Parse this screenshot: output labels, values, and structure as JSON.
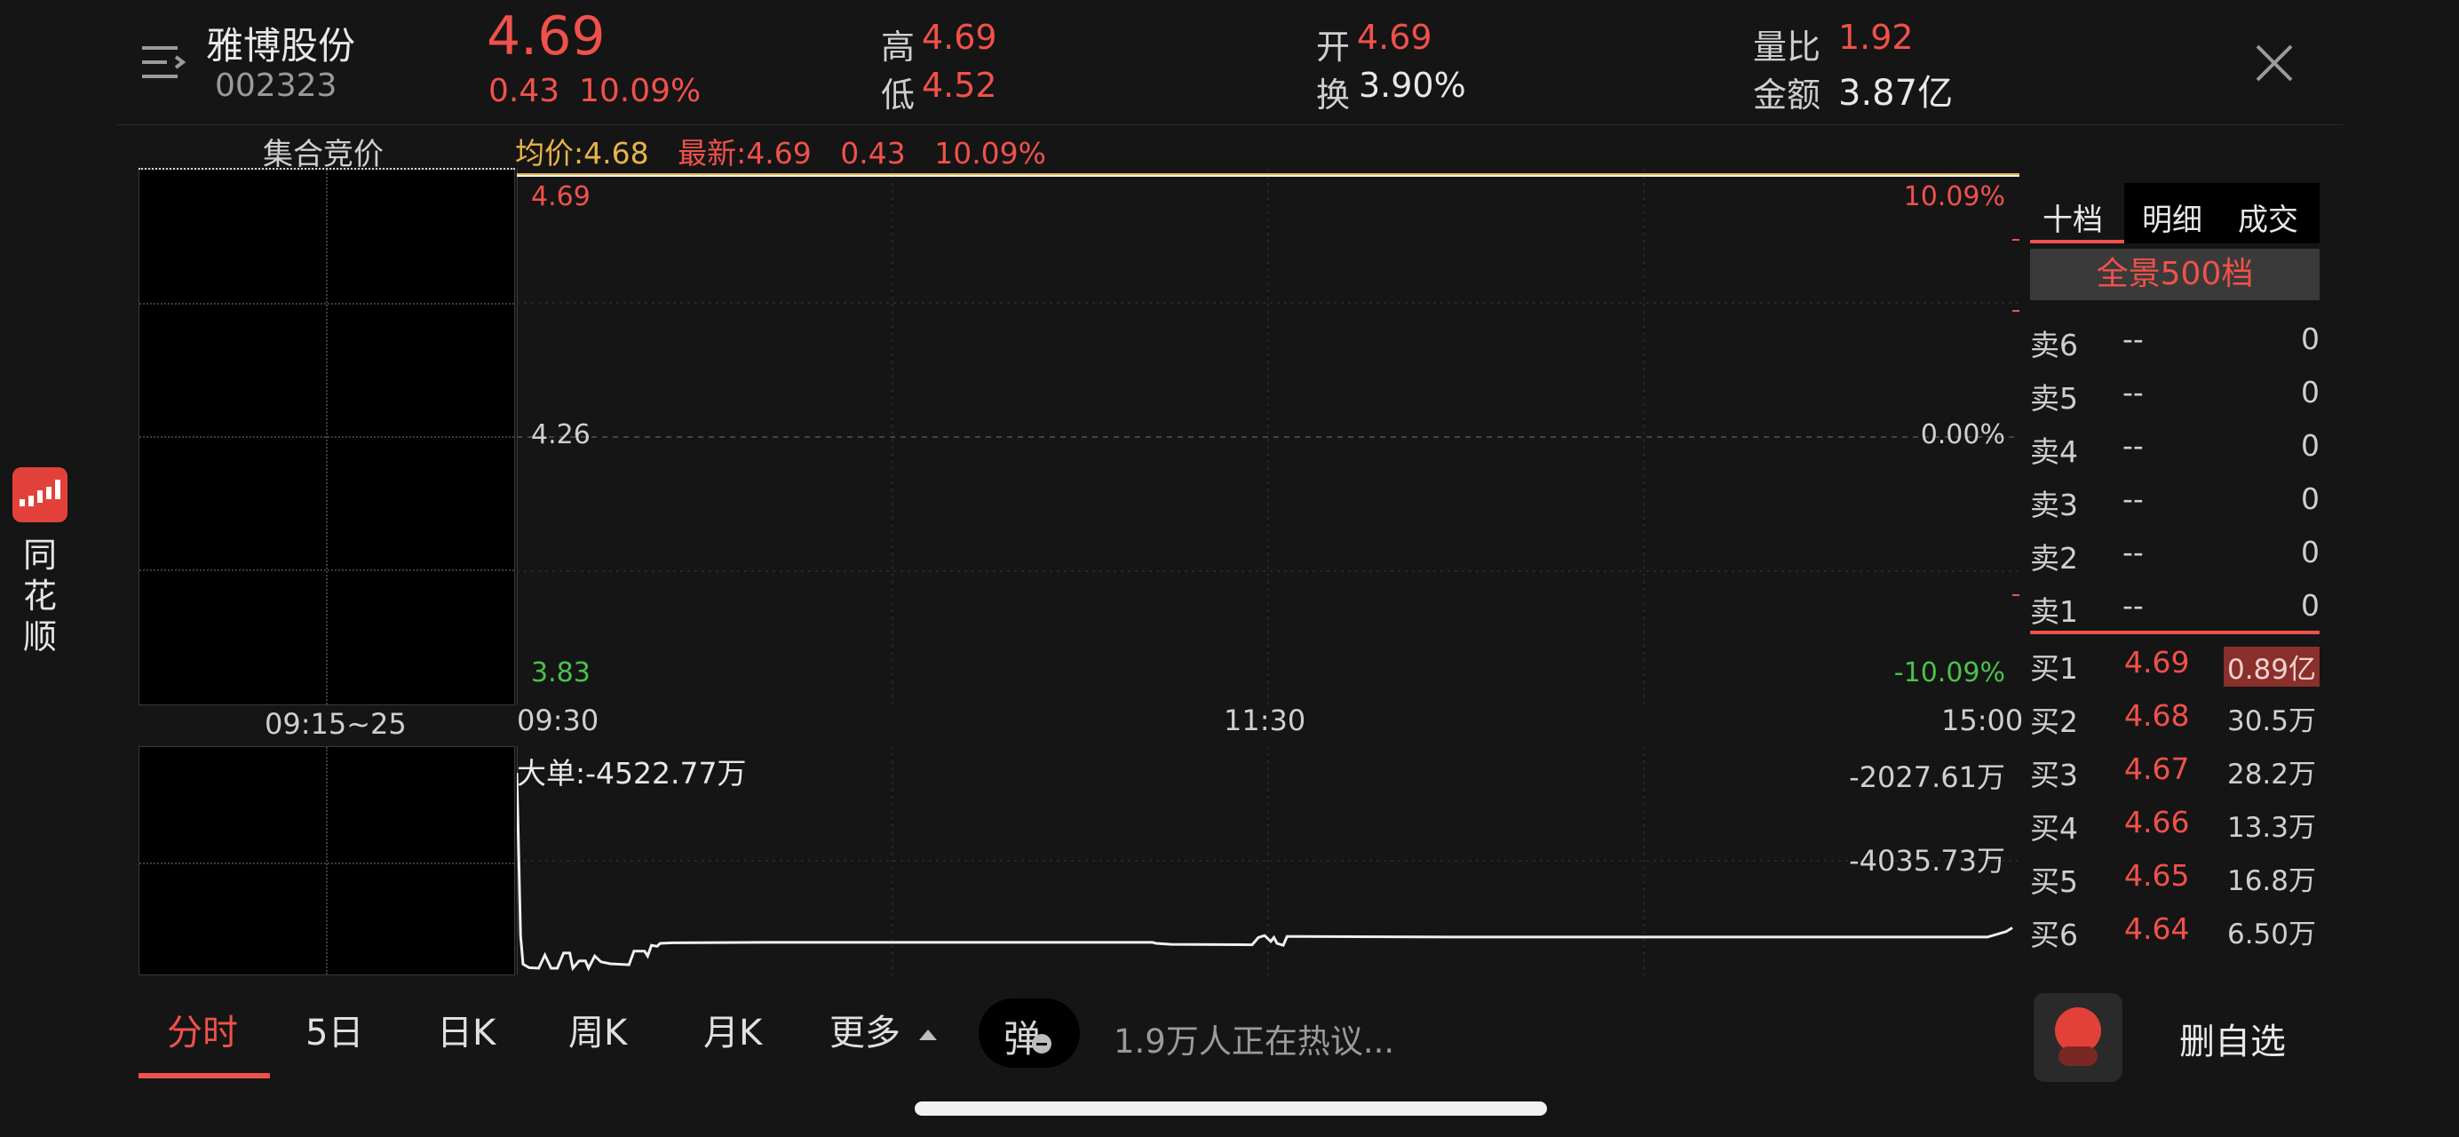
{
  "header": {
    "stock_name": "雅博股份",
    "stock_code": "002323",
    "price": "4.69",
    "change": "0.43",
    "change_pct": "10.09%",
    "stats": {
      "high_label": "高",
      "high": "4.69",
      "low_label": "低",
      "low": "4.52",
      "open_label": "开",
      "open": "4.69",
      "turnover_label": "换",
      "turnover": "3.90%",
      "vol_ratio_label": "量比",
      "vol_ratio": "1.92",
      "amount_label": "金额",
      "amount": "3.87亿"
    }
  },
  "sidebar": {
    "app_name_chars": [
      "同",
      "花",
      "顺"
    ]
  },
  "auction": {
    "title": "集合竞价",
    "time_label": "09:15~25"
  },
  "chart_info": {
    "avg_label": "均价:4.68",
    "latest_label": "最新:4.69",
    "change": "0.43",
    "change_pct": "10.09%"
  },
  "chart_data": {
    "type": "line",
    "price_axis": {
      "top": "4.69",
      "mid": "4.26",
      "bottom": "3.83"
    },
    "pct_axis": {
      "top": "10.09%",
      "mid": "0.00%",
      "bottom": "-10.09%"
    },
    "time_ticks": [
      "09:30",
      "11:30",
      "15:00"
    ],
    "price_series": {
      "start": 4.69,
      "end": 4.69,
      "ylim": [
        3.83,
        4.69
      ]
    },
    "flow": {
      "label": "大单:-4522.77万",
      "top_value": "-2027.61万",
      "bottom_value": "-4035.73万",
      "ylim": [
        -4035.73,
        -2027.61
      ],
      "points": [
        [
          0,
          -2027.61
        ],
        [
          0.6,
          -3700
        ],
        [
          1,
          -3995
        ],
        [
          2,
          -4030
        ],
        [
          3.5,
          -4035.73
        ],
        [
          4.5,
          -3900
        ],
        [
          5.5,
          -4035.73
        ],
        [
          6.5,
          -4035.73
        ],
        [
          7.5,
          -3880
        ],
        [
          8.5,
          -3880
        ],
        [
          9,
          -4035.73
        ],
        [
          10,
          -3960
        ],
        [
          11,
          -3960
        ],
        [
          11.5,
          -4035.73
        ],
        [
          12.5,
          -3910
        ],
        [
          13.5,
          -3970
        ],
        [
          15,
          -3990
        ],
        [
          18,
          -4000
        ],
        [
          18.8,
          -3860
        ],
        [
          20.5,
          -3860
        ],
        [
          21,
          -3910
        ],
        [
          21.6,
          -3800
        ],
        [
          22.5,
          -3810
        ],
        [
          23,
          -3780
        ],
        [
          25,
          -3775
        ],
        [
          40,
          -3770
        ],
        [
          50,
          -3770
        ],
        [
          75,
          -3770
        ],
        [
          90,
          -3770
        ],
        [
          102,
          -3770
        ],
        [
          102.6,
          -3780
        ],
        [
          105,
          -3790
        ],
        [
          118,
          -3795
        ],
        [
          119,
          -3720
        ],
        [
          120,
          -3700
        ],
        [
          121,
          -3760
        ],
        [
          121.5,
          -3720
        ],
        [
          122,
          -3780
        ],
        [
          123,
          -3800
        ],
        [
          123.6,
          -3710
        ],
        [
          126,
          -3710
        ],
        [
          150,
          -3715
        ],
        [
          180,
          -3715
        ],
        [
          210,
          -3715
        ],
        [
          236,
          -3715
        ],
        [
          239,
          -3660
        ],
        [
          240,
          -3620
        ]
      ]
    }
  },
  "orderbook": {
    "tabs": [
      "十档",
      "明细",
      "成交"
    ],
    "panorama_btn": "全景500档",
    "asks": [
      {
        "label": "卖6",
        "price": "--",
        "vol": "0"
      },
      {
        "label": "卖5",
        "price": "--",
        "vol": "0"
      },
      {
        "label": "卖4",
        "price": "--",
        "vol": "0"
      },
      {
        "label": "卖3",
        "price": "--",
        "vol": "0"
      },
      {
        "label": "卖2",
        "price": "--",
        "vol": "0"
      },
      {
        "label": "卖1",
        "price": "--",
        "vol": "0"
      }
    ],
    "bids": [
      {
        "label": "买1",
        "price": "4.69",
        "vol": "0.89亿"
      },
      {
        "label": "买2",
        "price": "4.68",
        "vol": "30.5万"
      },
      {
        "label": "买3",
        "price": "4.67",
        "vol": "28.2万"
      },
      {
        "label": "买4",
        "price": "4.66",
        "vol": "13.3万"
      },
      {
        "label": "买5",
        "price": "4.65",
        "vol": "16.8万"
      },
      {
        "label": "买6",
        "price": "4.64",
        "vol": "6.50万"
      }
    ]
  },
  "bottom_bar": {
    "tabs": [
      "分时",
      "5日",
      "日K",
      "周K",
      "月K",
      "更多"
    ],
    "danmu_label": "弹",
    "discussion": "1.9万人正在热议...",
    "remove_watchlist": "删自选"
  },
  "colors": {
    "up": "#f0514b",
    "down": "#4bc14b",
    "avg_line": "#e8b34a",
    "background": "#151515"
  }
}
